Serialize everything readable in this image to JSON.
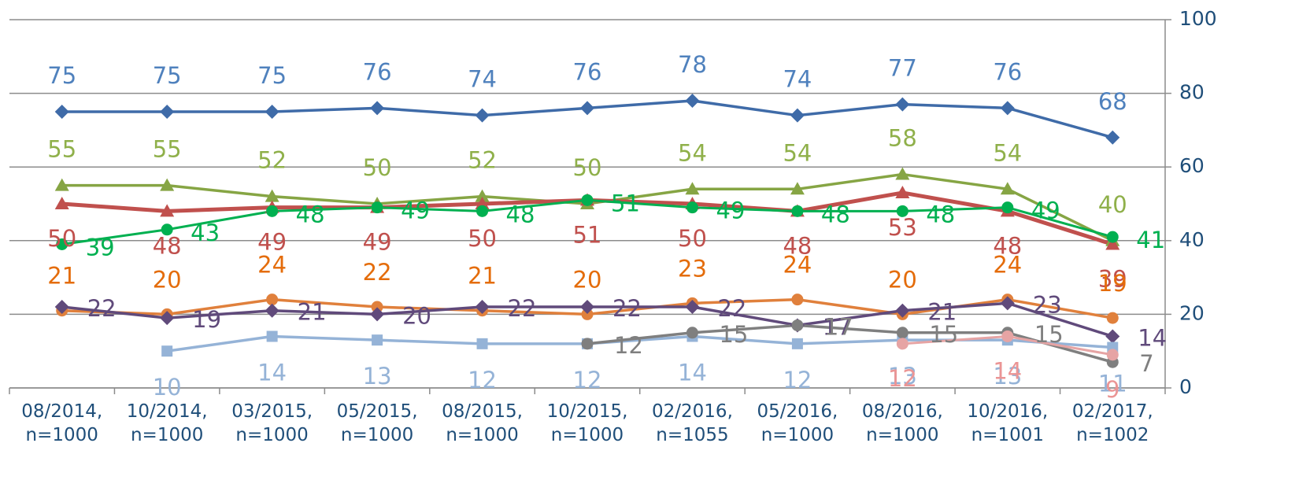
{
  "chart_data": {
    "type": "line",
    "categories": [
      "08/2014,\nn=1000",
      "10/2014,\nn=1000",
      "03/2015,\nn=1000",
      "05/2015,\nn=1000",
      "08/2015,\nn=1000",
      "10/2015,\nn=1000",
      "02/2016,\nn=1055",
      "05/2016,\nn=1000",
      "08/2016,\nn=1000",
      "10/2016,\nn=1001",
      "02/2017,\nn=1002"
    ],
    "series": [
      {
        "color": "#3f6ba8",
        "label_color": "#4f81bd",
        "marker": "diamond",
        "values": [
          75,
          75,
          75,
          76,
          74,
          76,
          78,
          74,
          77,
          76,
          68
        ]
      },
      {
        "color": "#86a544",
        "label_color": "#8fb04a",
        "marker": "triangle",
        "values": [
          55,
          55,
          52,
          50,
          52,
          50,
          54,
          54,
          58,
          54,
          40
        ]
      },
      {
        "color": "#c0504d",
        "label_color": "#c0504d",
        "marker": "triangle",
        "values": [
          50,
          48,
          49,
          49,
          50,
          51,
          50,
          48,
          53,
          48,
          39
        ]
      },
      {
        "color": "#00b050",
        "label_color": "#00b050",
        "marker": "circle",
        "values": [
          39,
          43,
          48,
          49,
          48,
          51,
          49,
          48,
          48,
          49,
          41
        ]
      },
      {
        "color": "#e0803c",
        "label_color": "#e46c0a",
        "marker": "circle",
        "values": [
          21,
          20,
          24,
          22,
          21,
          20,
          23,
          24,
          20,
          24,
          19
        ]
      },
      {
        "color": "#604a7b",
        "label_color": "#604a7b",
        "marker": "diamond",
        "values": [
          22,
          19,
          21,
          20,
          22,
          22,
          22,
          17,
          21,
          23,
          14
        ]
      },
      {
        "color": "#95b3d7",
        "label_color": "#95b3d7",
        "marker": "square",
        "values": [
          null,
          10,
          14,
          13,
          12,
          12,
          14,
          12,
          13,
          13,
          11
        ]
      },
      {
        "color": "#7f7f7f",
        "label_color": "#7f7f7f",
        "marker": "circle",
        "values": [
          null,
          null,
          null,
          null,
          null,
          12,
          15,
          17,
          15,
          15,
          7
        ]
      },
      {
        "color": "#e6a4a4",
        "label_color": "#eb9595",
        "marker": "circle",
        "values": [
          null,
          null,
          null,
          null,
          null,
          null,
          null,
          null,
          12,
          14,
          9
        ]
      }
    ],
    "ylim": [
      0,
      100
    ],
    "yticks": [
      0,
      20,
      40,
      60,
      80,
      100
    ],
    "grid": true,
    "y_axis_side": "right"
  }
}
